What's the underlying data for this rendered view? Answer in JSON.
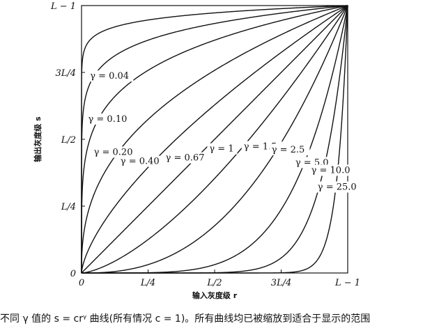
{
  "chart_data": {
    "type": "line",
    "title": "",
    "xlabel": "输入灰度级 r",
    "ylabel": "输出灰度级 s",
    "xlim": [
      0,
      1
    ],
    "ylim": [
      0,
      1
    ],
    "x_ticks": [
      "0",
      "L/4",
      "L/2",
      "3L/4",
      "L − 1"
    ],
    "y_ticks": [
      "0",
      "L/4",
      "L/2",
      "3L/4",
      "L − 1"
    ],
    "grid": false,
    "legend": "none",
    "formula": "s = c·r^γ (c = 1)",
    "series": [
      {
        "name": "γ = 0.04",
        "gamma": 0.04
      },
      {
        "name": "γ = 0.10",
        "gamma": 0.1
      },
      {
        "name": "γ = 0.20",
        "gamma": 0.2
      },
      {
        "name": "γ = 0.40",
        "gamma": 0.4
      },
      {
        "name": "γ = 0.67",
        "gamma": 0.67
      },
      {
        "name": "γ = 1",
        "gamma": 1
      },
      {
        "name": "γ = 1.5",
        "gamma": 1.5
      },
      {
        "name": "γ = 2.5",
        "gamma": 2.5
      },
      {
        "name": "γ = 5.0",
        "gamma": 5.0
      },
      {
        "name": "γ = 10.0",
        "gamma": 10.0
      },
      {
        "name": "γ = 25.0",
        "gamma": 25.0
      }
    ],
    "line_color": "#111111"
  },
  "caption": "不同 γ 值的 s = crᵞ 曲线(所有情况 c = 1)。所有曲线均已被缩放到适合于显示的范围"
}
